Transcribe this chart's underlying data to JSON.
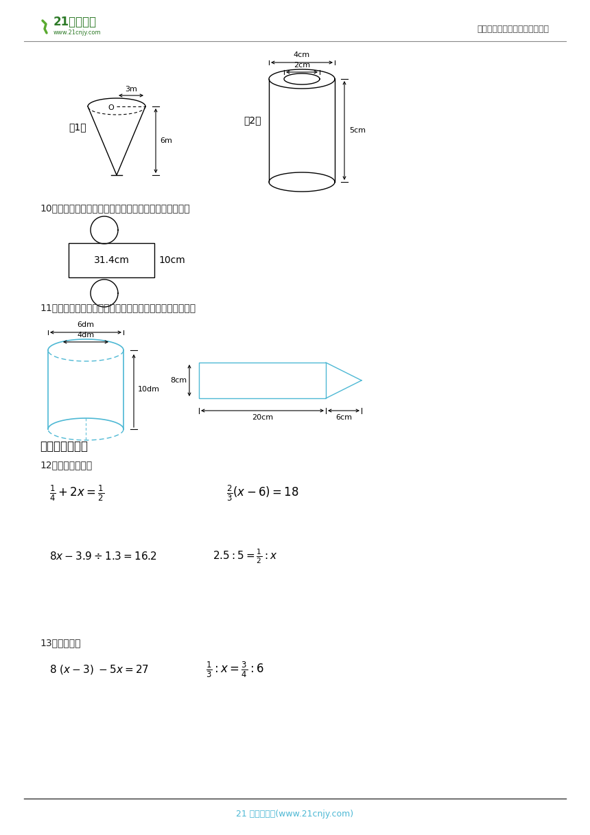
{
  "bg_color": "#ffffff",
  "header_right_text": "中小学教育资源及组卷应用平台",
  "footer_text": "21 世纪教育网(www.21cnjy.com)",
  "footer_text_color": "#4db8d4",
  "section2_title": "二、比例计算题",
  "q10_text": "10．下图是一个圆柱的表面展开图，求这个圆柱的体积。",
  "q11_text": "11．求第一个图形的表面积和体积，求第二个图形的体积。",
  "q12_text": "12．解下列方程。",
  "q13_text": "13．解方程。",
  "label1": "（1）",
  "label2": "（2）",
  "cone_3m": "3m",
  "cone_6m": "6m",
  "cyl_4cm": "4cm",
  "cyl_2cm": "2cm",
  "cyl_5cm": "5cm",
  "net_314cm": "31.4cm",
  "net_10cm": "10cm",
  "cyl2_6dm": "6dm",
  "cyl2_4dm": "4dm",
  "cyl2_10dm": "10dm",
  "pencil_8cm": "8cm",
  "pencil_20cm": "20cm",
  "pencil_6cm": "6cm"
}
